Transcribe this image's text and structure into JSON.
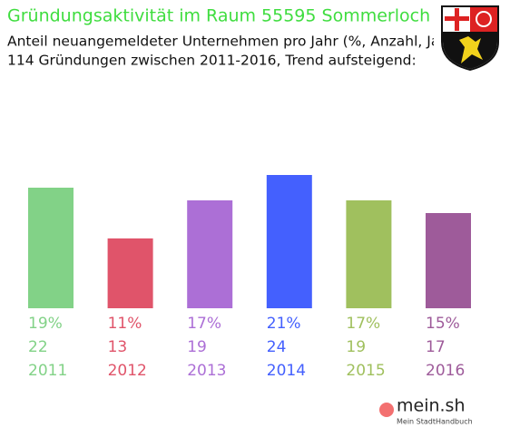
{
  "chart_data": {
    "type": "bar",
    "title": "Gründungsaktivität im Raum 55595 Sommerloch",
    "subtitle": [
      "Anteil neuangemeldeter Unternehmen pro Jahr (%, Anzahl, Jahr)",
      "114 Gründungen zwischen 2011-2016, Trend aufsteigend:"
    ],
    "categories": [
      "2011",
      "2012",
      "2013",
      "2014",
      "2015",
      "2016"
    ],
    "values": [
      19,
      11,
      17,
      21,
      17,
      15
    ],
    "value_labels": [
      "19%",
      "11%",
      "17%",
      "21%",
      "17%",
      "15%"
    ],
    "counts": [
      22,
      13,
      19,
      24,
      19,
      17
    ],
    "colors": [
      "#82d287",
      "#e0546a",
      "#ac6fd6",
      "#4460fe",
      "#a0c05e",
      "#9e5b9a"
    ],
    "logo": {
      "name": "mein.sh",
      "tagline": "Mein StadtHandbuch"
    }
  }
}
